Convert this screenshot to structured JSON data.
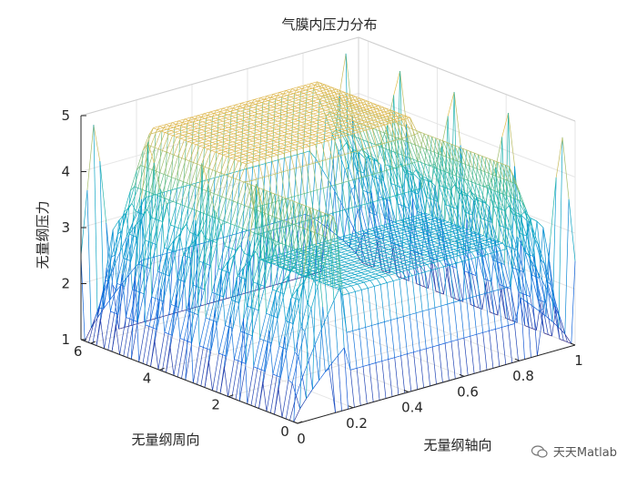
{
  "chart_data": {
    "type": "surface-mesh",
    "title": "气膜内压力分布",
    "xlabel": "无量纲轴向",
    "ylabel": "无量纲周向",
    "zlabel": "无量纲压力",
    "xlim": [
      0,
      1
    ],
    "ylim": [
      0,
      6.2832
    ],
    "zlim": [
      1,
      5
    ],
    "xticks": [
      "0",
      "0.2",
      "0.4",
      "0.6",
      "0.8",
      "1"
    ],
    "yticks": [
      "0",
      "2",
      "4",
      "6"
    ],
    "zticks": [
      "1",
      "2",
      "3",
      "4",
      "5"
    ],
    "colormap": "parula",
    "grid": true,
    "surface": {
      "boundary_value": 1,
      "plateau_value": 4.6,
      "groove_region": {
        "x": [
          0.2,
          0.8
        ],
        "y": [
          0,
          3.1
        ]
      },
      "groove_value": 3.0,
      "spike_peak": 5.0
    }
  },
  "watermark": "天天Matlab"
}
